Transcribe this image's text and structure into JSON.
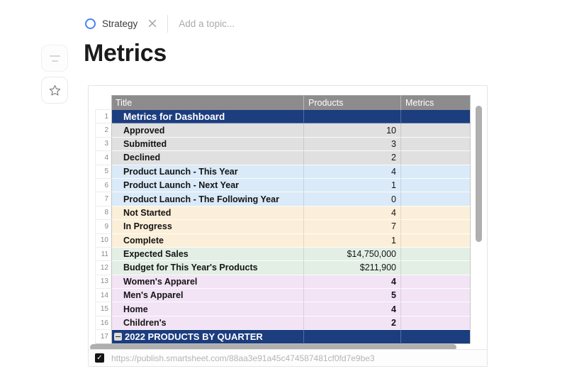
{
  "topic_bar": {
    "tag_label": "Strategy",
    "add_placeholder": "Add a topic..."
  },
  "page": {
    "title": "Metrics"
  },
  "icons": {
    "checkbox_check": "✓"
  },
  "colors": {
    "tag_circle": "#4A82EE",
    "header_bg": "#8C8C8C",
    "row_styles": {
      "navy": "#1C3D7E",
      "gray": "#E0E0E0",
      "blue": "#DAEAF8",
      "cream": "#FCEFD9",
      "green": "#E3EFE4",
      "purple": "#F2E3F5"
    }
  },
  "embed": {
    "url": "https://publish.smartsheet.com/88aa3e91a45c474587481cf0fd7e9be3",
    "table": {
      "columns": [
        "Title",
        "Products",
        "Metrics"
      ],
      "rows": [
        {
          "num": "1",
          "title": "Metrics for Dashboard",
          "products": "",
          "metrics": "",
          "style": "navy",
          "variant": "parent-large"
        },
        {
          "num": "2",
          "title": "Approved",
          "products": "10",
          "metrics": "",
          "style": "gray"
        },
        {
          "num": "3",
          "title": "Submitted",
          "products": "3",
          "metrics": "",
          "style": "gray"
        },
        {
          "num": "4",
          "title": "Declined",
          "products": "2",
          "metrics": "",
          "style": "gray"
        },
        {
          "num": "5",
          "title": "Product Launch - This Year",
          "products": "4",
          "metrics": "",
          "style": "blue"
        },
        {
          "num": "6",
          "title": "Product Launch - Next Year",
          "products": "1",
          "metrics": "",
          "style": "blue"
        },
        {
          "num": "7",
          "title": "Product Launch - The Following Year",
          "products": "0",
          "metrics": "",
          "style": "blue"
        },
        {
          "num": "8",
          "title": "Not Started",
          "products": "4",
          "metrics": "",
          "style": "cream"
        },
        {
          "num": "9",
          "title": "In Progress",
          "products": "7",
          "metrics": "",
          "style": "cream"
        },
        {
          "num": "10",
          "title": "Complete",
          "products": "1",
          "metrics": "",
          "style": "cream"
        },
        {
          "num": "11",
          "title": "Expected Sales",
          "products": "$14,750,000",
          "metrics": "",
          "style": "green"
        },
        {
          "num": "12",
          "title": "Budget for This Year's Products",
          "products": "$211,900",
          "metrics": "",
          "style": "green"
        },
        {
          "num": "13",
          "title": "Women's Apparel",
          "products": "4",
          "metrics": "",
          "style": "purple",
          "bold_value": true
        },
        {
          "num": "14",
          "title": "Men's Apparel",
          "products": "5",
          "metrics": "",
          "style": "purple",
          "bold_value": true
        },
        {
          "num": "15",
          "title": "Home",
          "products": "4",
          "metrics": "",
          "style": "purple",
          "bold_value": true
        },
        {
          "num": "16",
          "title": "Children's",
          "products": "2",
          "metrics": "",
          "style": "purple",
          "bold_value": true
        },
        {
          "num": "17",
          "title": "2022 PRODUCTS BY QUARTER",
          "products": "",
          "metrics": "",
          "style": "navy",
          "collapse_icon": true
        }
      ]
    }
  }
}
